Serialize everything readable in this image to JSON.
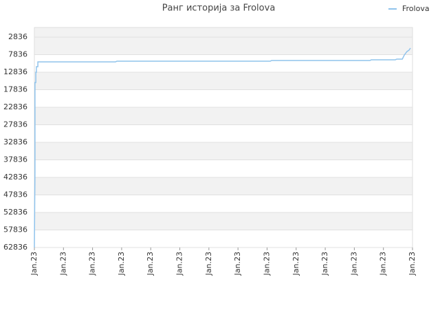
{
  "chart_data": {
    "type": "line",
    "title": "Ранг историја за Frolova",
    "x": [
      0,
      0.02,
      0.02,
      0.05,
      0.05,
      0.07,
      0.07,
      0.12,
      0.12,
      0.14,
      2.79,
      2.84,
      8.11,
      8.16,
      11.54,
      11.58,
      12.41,
      12.46,
      12.65,
      12.72,
      12.81,
      12.88,
      12.93
    ],
    "series": [
      {
        "name": "Frolova",
        "color": "#8fc3ec",
        "values": [
          62836,
          41267,
          15777,
          15777,
          12836,
          12836,
          11267,
          11267,
          9895,
          9895,
          9895,
          9699,
          9699,
          9502,
          9502,
          9306,
          9306,
          9110,
          9110,
          7934,
          6954,
          6562,
          5973
        ]
      }
    ],
    "xlim": [
      0,
      13
    ],
    "xticks": [
      {
        "value": 0,
        "label": "Jan.23"
      },
      {
        "value": 1,
        "label": "Jan.23"
      },
      {
        "value": 2,
        "label": "Jan.23"
      },
      {
        "value": 3,
        "label": "Jan.23"
      },
      {
        "value": 4,
        "label": "Jan.23"
      },
      {
        "value": 5,
        "label": "Jan.23"
      },
      {
        "value": 6,
        "label": "Jan.23"
      },
      {
        "value": 7,
        "label": "Jan.23"
      },
      {
        "value": 8,
        "label": "Jan.23"
      },
      {
        "value": 9,
        "label": "Jan.23"
      },
      {
        "value": 10,
        "label": "Jan.23"
      },
      {
        "value": 11,
        "label": "Jan.23"
      },
      {
        "value": 12,
        "label": "Jan.23"
      },
      {
        "value": 13,
        "label": "Jan.23"
      }
    ],
    "ylim": [
      62836,
      100
    ],
    "yticks": [
      2836,
      7836,
      12836,
      17836,
      22836,
      27836,
      32836,
      37836,
      42836,
      47836,
      52836,
      57836,
      62836
    ],
    "grid": true,
    "legend": "top-right"
  }
}
